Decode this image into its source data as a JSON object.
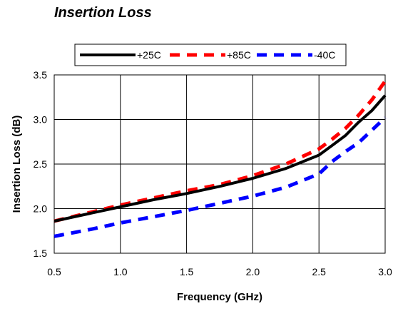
{
  "chart_data": {
    "type": "line",
    "title": "Insertion Loss",
    "xlabel": "Frequency (GHz)",
    "ylabel": "Insertion Loss (dB)",
    "xlim": [
      0.5,
      3.0
    ],
    "ylim": [
      1.5,
      3.5
    ],
    "xticks": [
      "0.5",
      "1.0",
      "1.5",
      "2.0",
      "2.5",
      "3.0"
    ],
    "yticks": [
      "1.5",
      "2.0",
      "2.5",
      "3.0",
      "3.5"
    ],
    "grid": true,
    "legend_position": "top",
    "x": [
      0.5,
      0.75,
      1.0,
      1.25,
      1.5,
      1.75,
      2.0,
      2.25,
      2.5,
      2.6,
      2.7,
      2.8,
      2.9,
      3.0
    ],
    "series": [
      {
        "name": "+25C",
        "color": "#000000",
        "style": "solid",
        "values": [
          1.86,
          1.94,
          2.02,
          2.1,
          2.17,
          2.25,
          2.34,
          2.45,
          2.6,
          2.71,
          2.82,
          2.97,
          3.1,
          3.27
        ]
      },
      {
        "name": "+85C",
        "color": "#ff0000",
        "style": "dashed",
        "values": [
          1.86,
          1.95,
          2.04,
          2.12,
          2.2,
          2.27,
          2.37,
          2.5,
          2.67,
          2.78,
          2.9,
          3.05,
          3.22,
          3.43
        ]
      },
      {
        "name": "-40C",
        "color": "#0000ff",
        "style": "dashed",
        "values": [
          1.69,
          1.76,
          1.84,
          1.91,
          1.98,
          2.06,
          2.14,
          2.24,
          2.39,
          2.53,
          2.64,
          2.74,
          2.88,
          3.02
        ]
      }
    ]
  }
}
